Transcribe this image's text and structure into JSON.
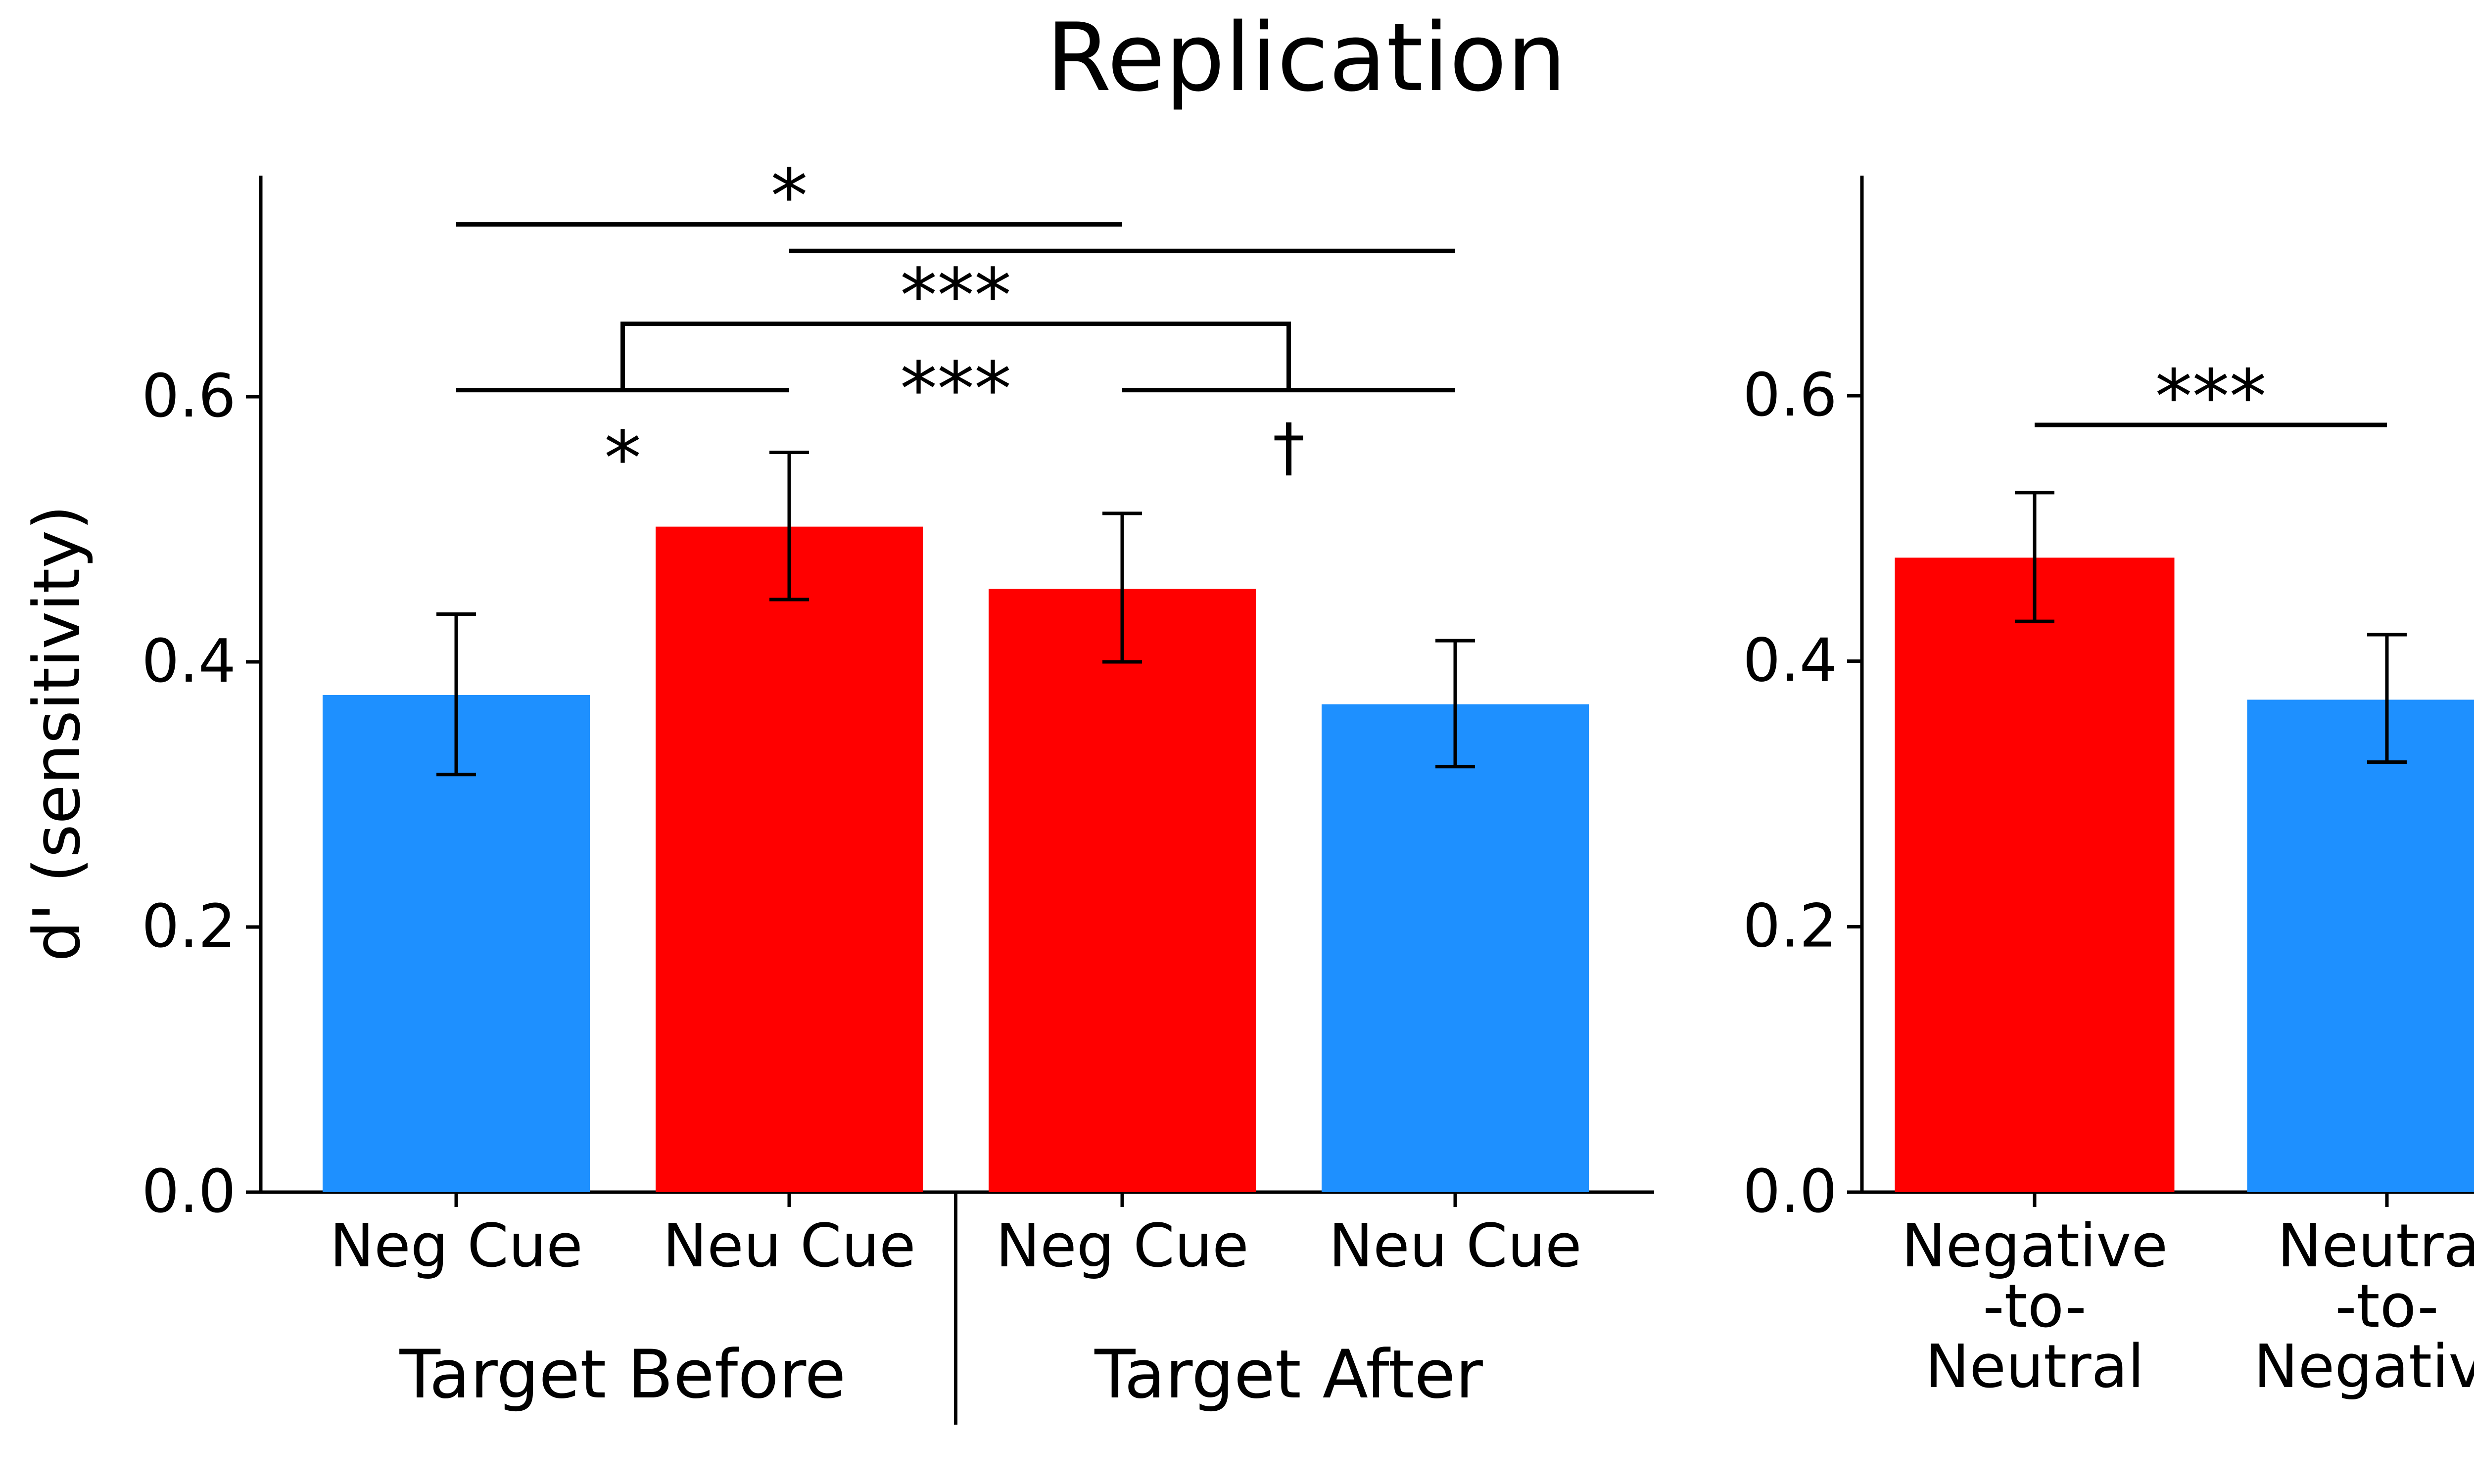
{
  "title": "Replication",
  "colors": {
    "negative": "#ff0000",
    "neutral": "#1e90ff",
    "axis": "#000000"
  },
  "chart_data": [
    {
      "type": "bar",
      "title": "",
      "ylabel": "d' (sensitivity)",
      "ylim": [
        0,
        0.76
      ],
      "yticks": [
        "0.0",
        "0.2",
        "0.4",
        "0.6"
      ],
      "grid": false,
      "legend": "none",
      "categories": [
        "Neg Cue",
        "Neu Cue",
        "Neg Cue",
        "Neu Cue"
      ],
      "groups": [
        "Target Before",
        "Target After"
      ],
      "values": [
        0.375,
        0.502,
        0.455,
        0.368
      ],
      "error_low": [
        0.315,
        0.447,
        0.4,
        0.321
      ],
      "error_high": [
        0.436,
        0.558,
        0.512,
        0.416
      ],
      "bar_colors": [
        "#1e90ff",
        "#ff0000",
        "#ff0000",
        "#1e90ff"
      ],
      "significance": [
        {
          "from": 0,
          "to": 2,
          "label": "*"
        },
        {
          "from": 1,
          "to": 3,
          "label": ""
        },
        {
          "from": 0,
          "to": 1,
          "label": "*"
        },
        {
          "from": 2,
          "to": 3,
          "label": "†"
        },
        {
          "from": "pair-0-1",
          "to": "pair-2-3",
          "label": "***"
        },
        {
          "from": 1,
          "to": 2,
          "label": "***"
        }
      ]
    },
    {
      "type": "bar",
      "title": "",
      "ylabel": "",
      "ylim": [
        0,
        0.76
      ],
      "yticks": [
        "0.0",
        "0.2",
        "0.4",
        "0.6"
      ],
      "grid": false,
      "legend": "none",
      "categories": [
        "Negative\n-to-\nNeutral",
        "Neutral\n-to-\nNegative"
      ],
      "values": [
        0.478,
        0.371
      ],
      "error_low": [
        0.43,
        0.324
      ],
      "error_high": [
        0.527,
        0.42
      ],
      "bar_colors": [
        "#ff0000",
        "#1e90ff"
      ],
      "significance": [
        {
          "from": 0,
          "to": 1,
          "label": "***"
        }
      ]
    }
  ]
}
